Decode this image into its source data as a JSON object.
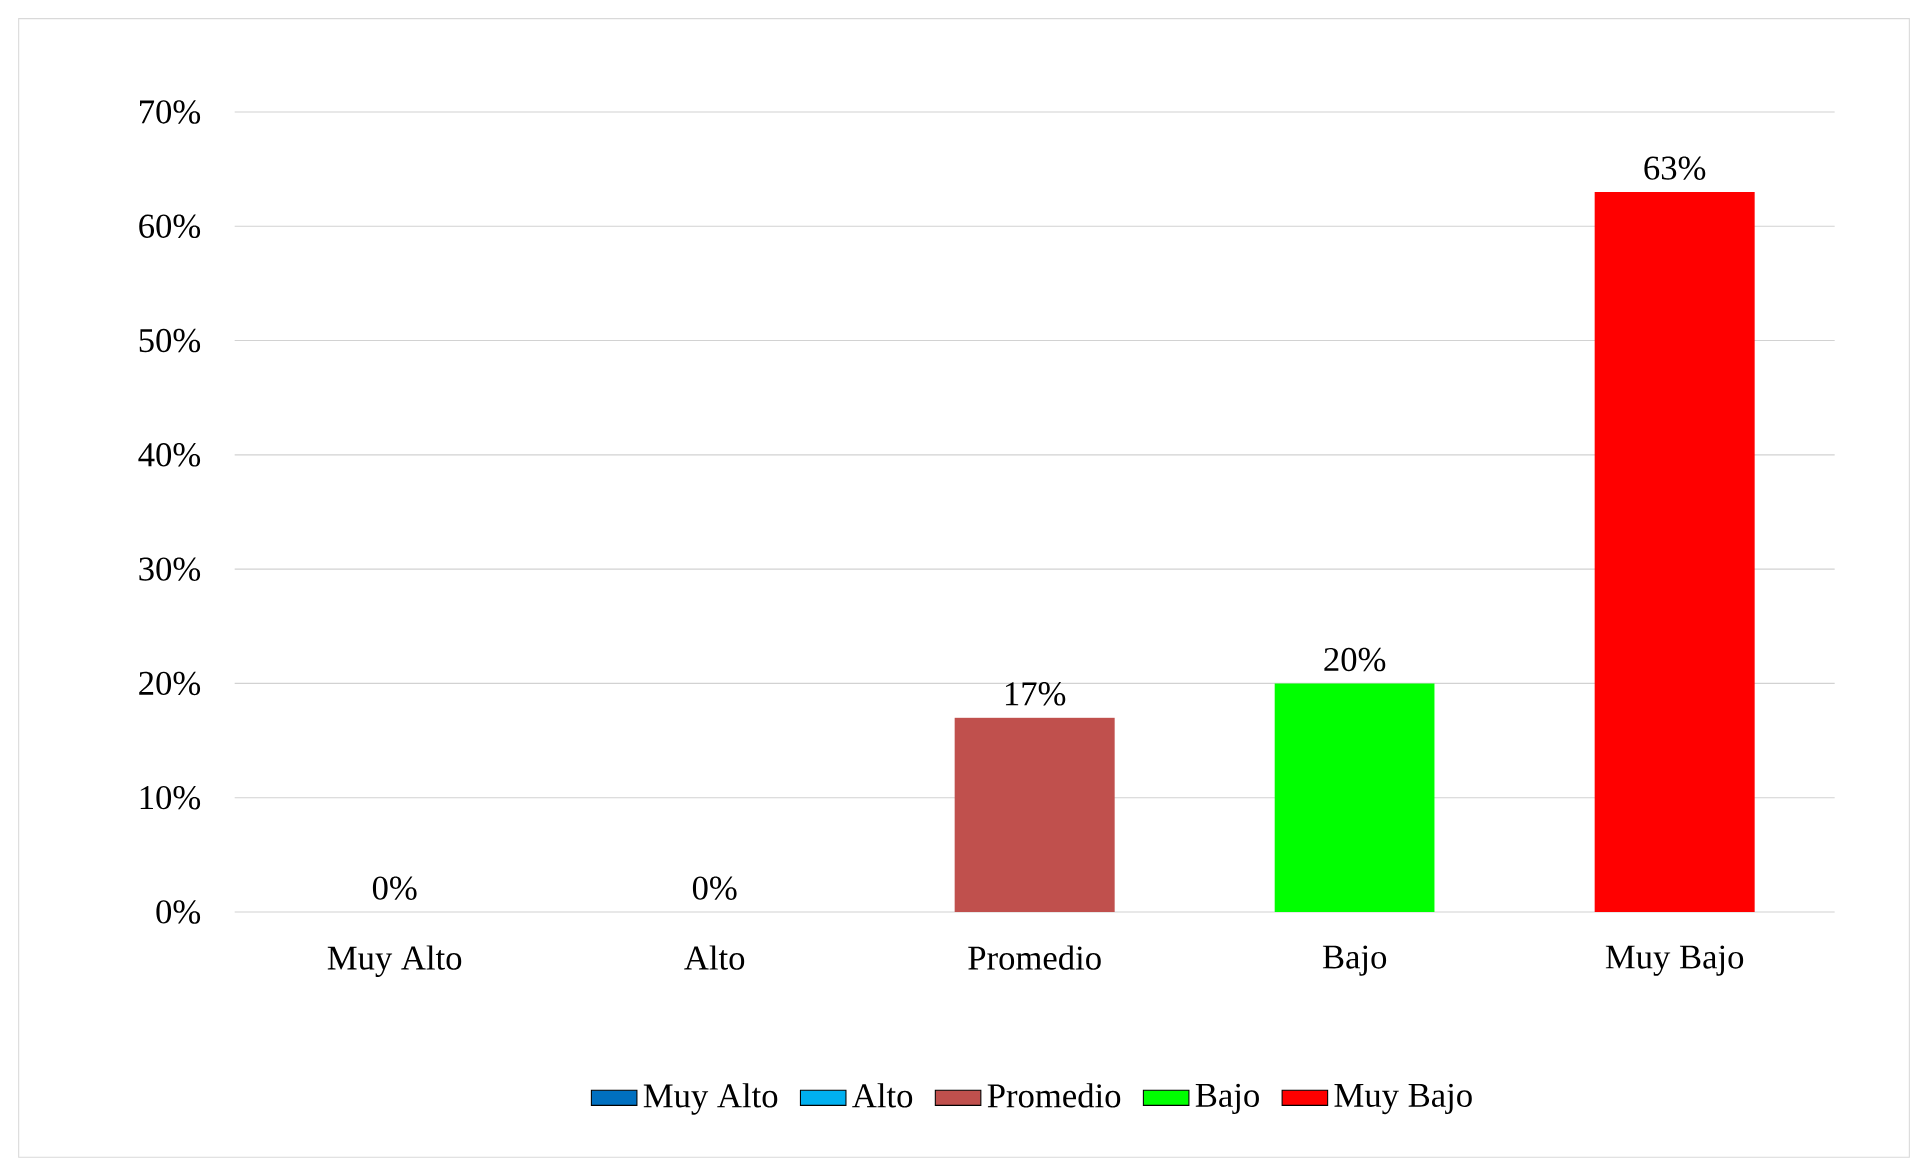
{
  "chart_data": {
    "type": "bar",
    "categories": [
      "Muy Alto",
      "Alto",
      "Promedio",
      "Bajo",
      "Muy Bajo"
    ],
    "series": [
      {
        "name": "Muy Alto",
        "color": "#0070c0",
        "values": [
          0,
          null,
          null,
          null,
          null
        ],
        "value_labels": [
          "0%",
          null,
          null,
          null,
          null
        ]
      },
      {
        "name": "Alto",
        "color": "#00b0f0",
        "values": [
          null,
          0,
          null,
          null,
          null
        ],
        "value_labels": [
          null,
          "0%",
          null,
          null,
          null
        ]
      },
      {
        "name": "Promedio",
        "color": "#c0504d",
        "values": [
          null,
          null,
          17,
          null,
          null
        ],
        "value_labels": [
          null,
          null,
          "17%",
          null,
          null
        ]
      },
      {
        "name": "Bajo",
        "color": "#00ff00",
        "values": [
          null,
          null,
          null,
          20,
          null
        ],
        "value_labels": [
          null,
          null,
          null,
          "20%",
          null
        ]
      },
      {
        "name": "Muy Bajo",
        "color": "#ff0000",
        "values": [
          null,
          null,
          null,
          null,
          63
        ],
        "value_labels": [
          null,
          null,
          null,
          null,
          "63%"
        ]
      }
    ],
    "ylim": [
      0,
      70
    ],
    "yticks": [
      {
        "value": 0,
        "label": "0%"
      },
      {
        "value": 10,
        "label": "10%"
      },
      {
        "value": 20,
        "label": "20%"
      },
      {
        "value": 30,
        "label": "30%"
      },
      {
        "value": 40,
        "label": "40%"
      },
      {
        "value": 50,
        "label": "50%"
      },
      {
        "value": 60,
        "label": "60%"
      },
      {
        "value": 70,
        "label": "70%"
      }
    ],
    "grid": "y",
    "legend": "bottom"
  }
}
